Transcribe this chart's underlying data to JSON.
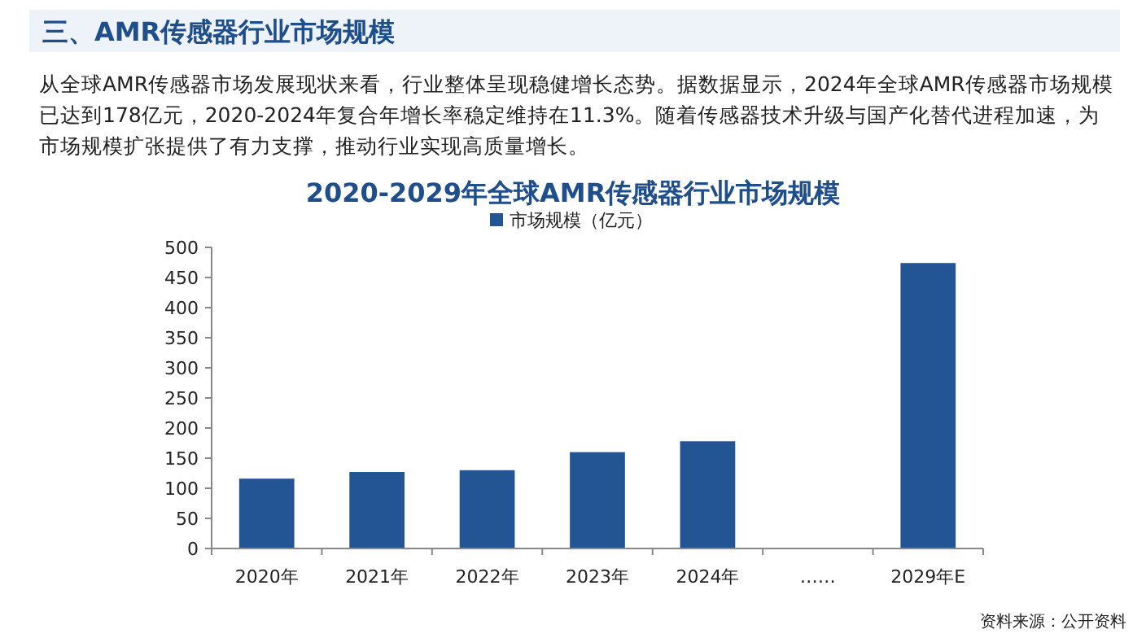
{
  "chart_data": {
    "type": "bar",
    "title": "2020-2029年全球AMR传感器行业市场规模",
    "categories": [
      "2020年",
      "2021年",
      "2022年",
      "2023年",
      "2024年",
      "……",
      "2029年E"
    ],
    "series": [
      {
        "name": "市场规模（亿元）",
        "color": "#235594",
        "values": [
          116,
          127,
          130,
          160,
          178,
          null,
          474
        ]
      }
    ],
    "ylim": [
      0,
      500
    ],
    "yticks": [
      0,
      50,
      100,
      150,
      200,
      250,
      300,
      350,
      400,
      450,
      500
    ],
    "grid": false,
    "legend": "top",
    "annotations": [
      "三、AMR传感器行业市场规模",
      "从全球AMR传感器市场发展现状来看，行业整体呈现稳健增长态势。据数据显示，2024年全球AMR传感器市场规模已达到178亿元，2020-2024年复合年增长率稳定维持在11.3%。随着传感器技术升级与国产化替代进程加速，为市场规模扩张提供了有力支撑，推动行业实现高质量增长。",
      "资料来源：公开资料"
    ]
  }
}
